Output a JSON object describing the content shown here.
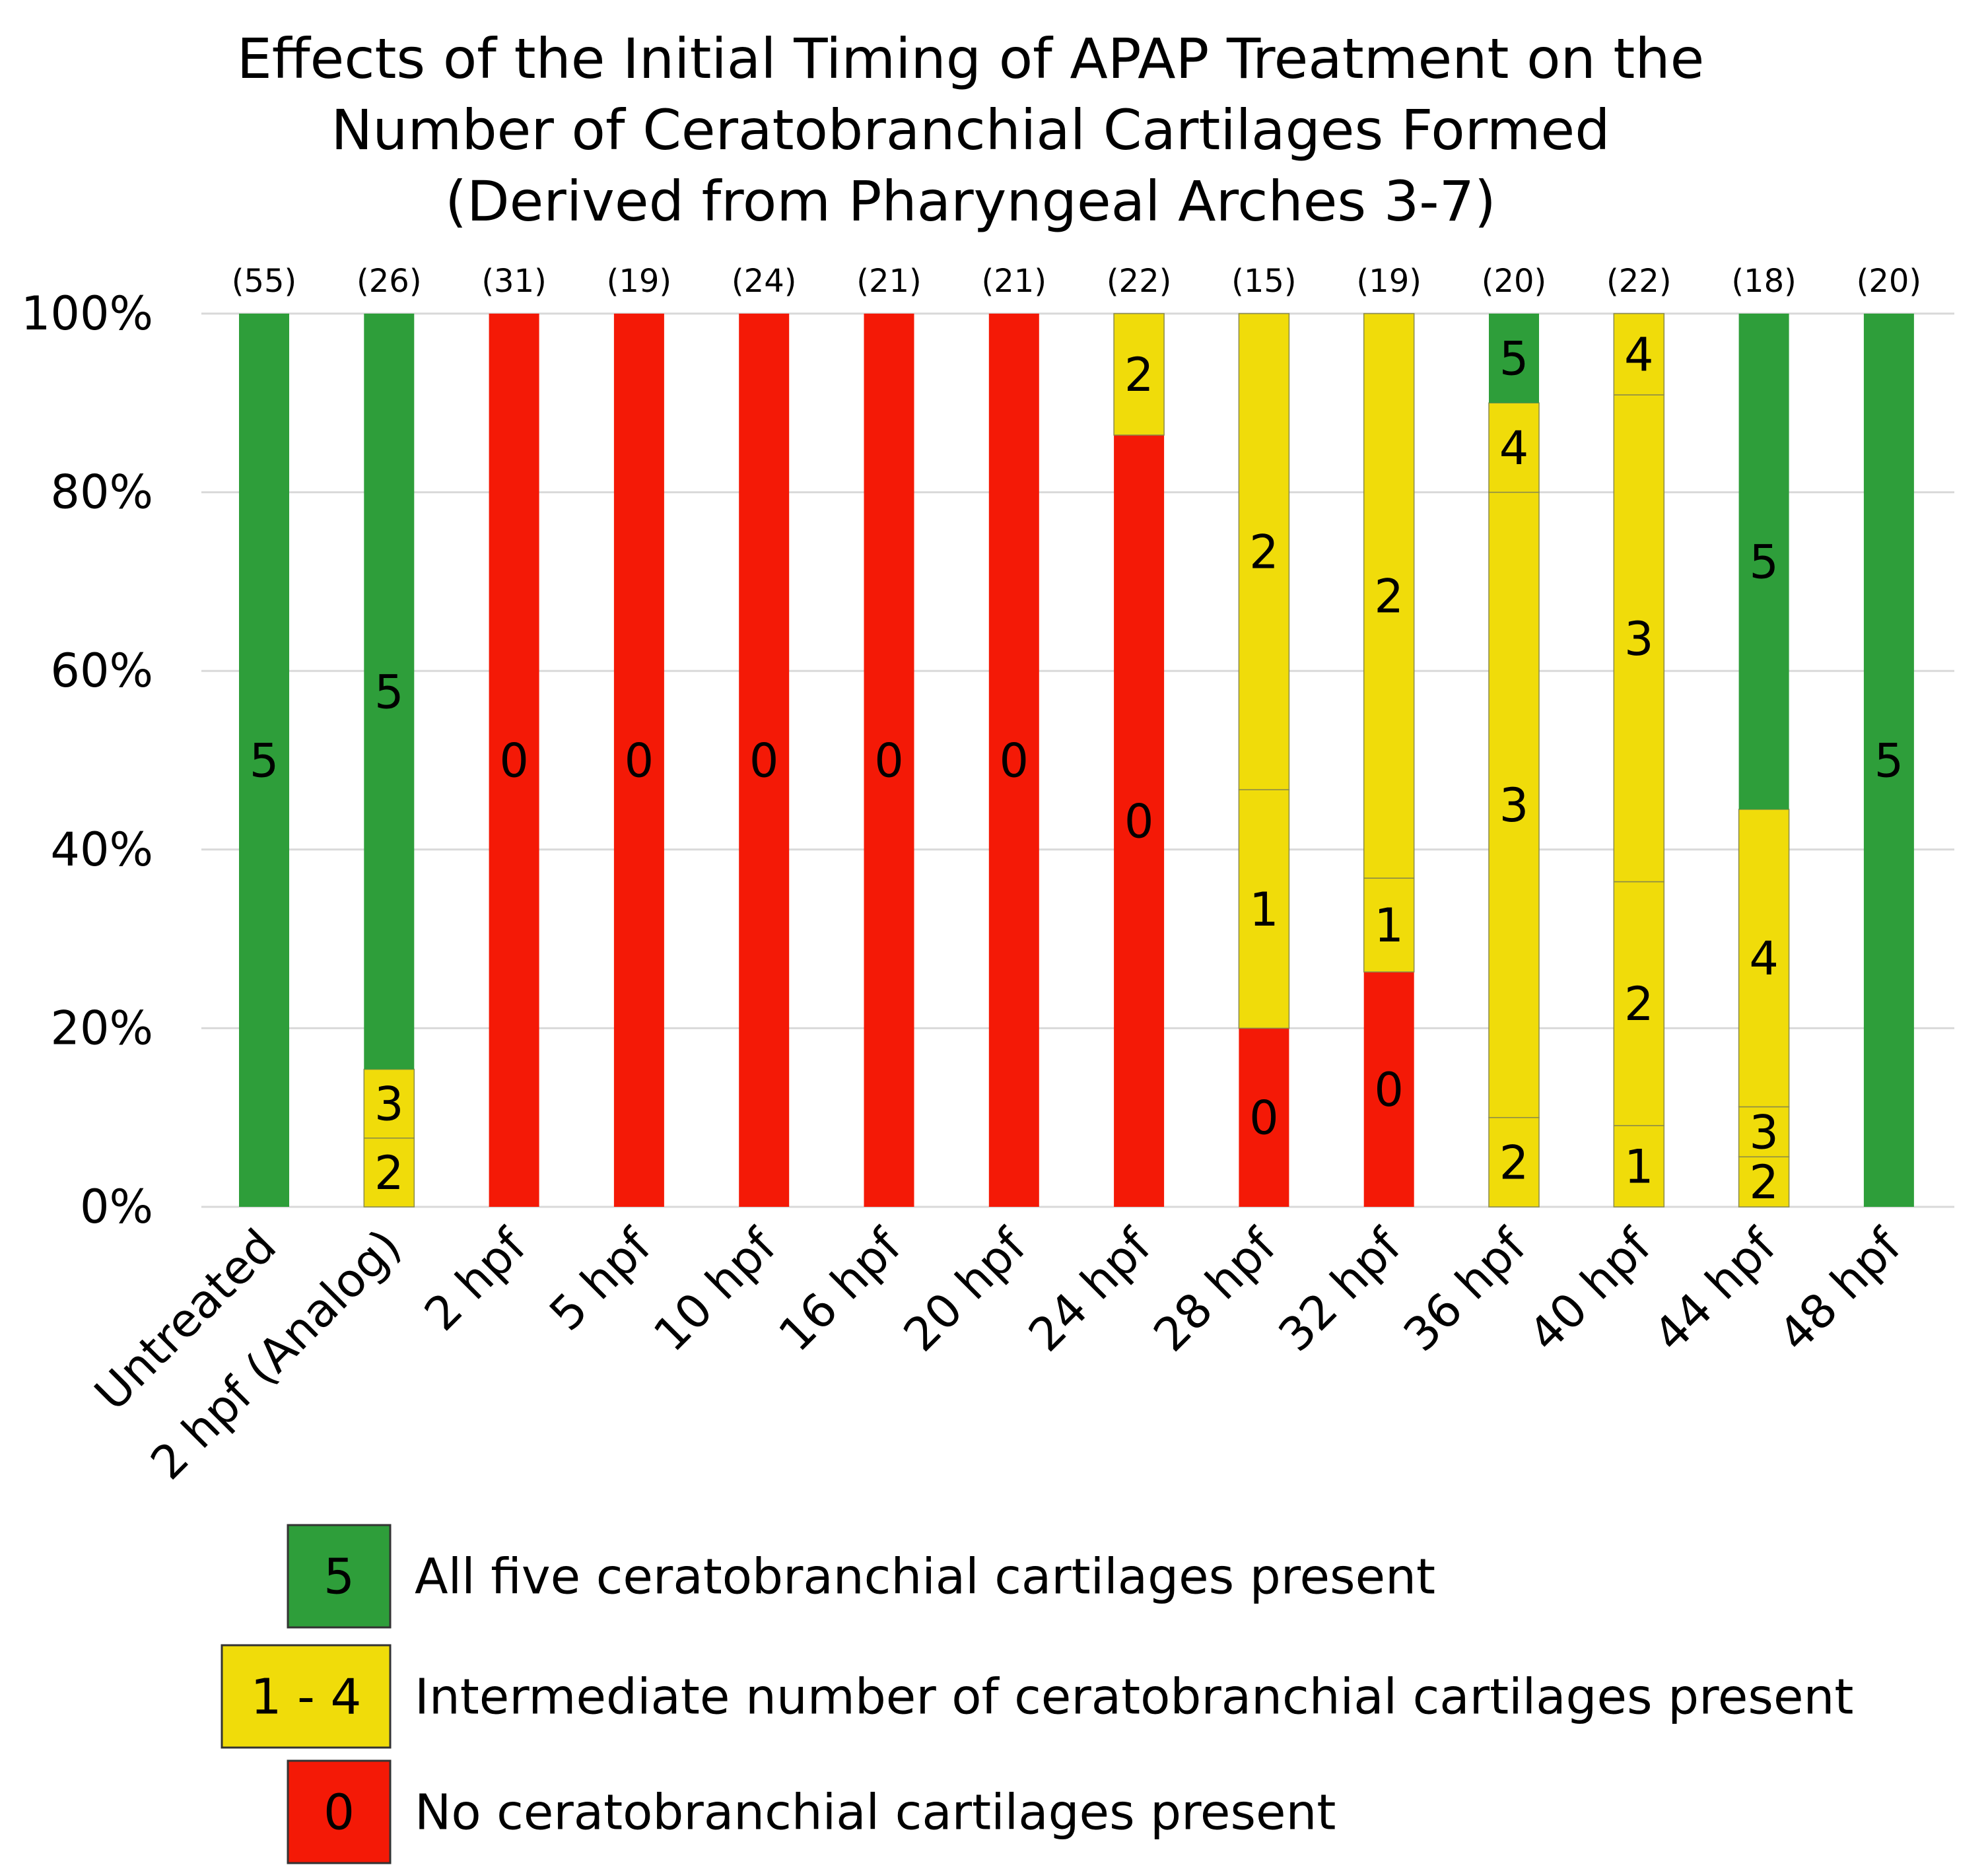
{
  "chart_data": {
    "type": "bar",
    "stacked": true,
    "title": [
      "Effects of the Initial Timing of APAP Treatment on the",
      "Number of Ceratobranchial Cartilages Formed",
      "(Derived from Pharyngeal Arches 3-7)"
    ],
    "xlabel": "",
    "ylabel": "",
    "ylim": [
      0,
      100
    ],
    "yticks": [
      "0%",
      "20%",
      "40%",
      "60%",
      "80%",
      "100%"
    ],
    "grid": true,
    "categories": [
      "Untreated",
      "2 hpf (Analog)",
      "2 hpf",
      "5 hpf",
      "10 hpf",
      "16 hpf",
      "20 hpf",
      "24 hpf",
      "28 hpf",
      "32 hpf",
      "36 hpf",
      "40 hpf",
      "44 hpf",
      "48 hpf"
    ],
    "n_labels": [
      "(55)",
      "(26)",
      "(31)",
      "(19)",
      "(24)",
      "(21)",
      "(21)",
      "(22)",
      "(15)",
      "(19)",
      "(20)",
      "(22)",
      "(18)",
      "(20)"
    ],
    "stacks": [
      [
        {
          "label": "5",
          "value": 100,
          "color": "green"
        }
      ],
      [
        {
          "label": "2",
          "value": 7.7,
          "color": "yellow"
        },
        {
          "label": "3",
          "value": 7.7,
          "color": "yellow"
        },
        {
          "label": "5",
          "value": 84.6,
          "color": "green"
        }
      ],
      [
        {
          "label": "0",
          "value": 100,
          "color": "red"
        }
      ],
      [
        {
          "label": "0",
          "value": 100,
          "color": "red"
        }
      ],
      [
        {
          "label": "0",
          "value": 100,
          "color": "red"
        }
      ],
      [
        {
          "label": "0",
          "value": 100,
          "color": "red"
        }
      ],
      [
        {
          "label": "0",
          "value": 100,
          "color": "red"
        }
      ],
      [
        {
          "label": "0",
          "value": 86.4,
          "color": "red"
        },
        {
          "label": "2",
          "value": 13.6,
          "color": "yellow"
        }
      ],
      [
        {
          "label": "0",
          "value": 20,
          "color": "red"
        },
        {
          "label": "1",
          "value": 26.7,
          "color": "yellow"
        },
        {
          "label": "2",
          "value": 53.3,
          "color": "yellow"
        }
      ],
      [
        {
          "label": "0",
          "value": 26.3,
          "color": "red"
        },
        {
          "label": "1",
          "value": 10.5,
          "color": "yellow"
        },
        {
          "label": "2",
          "value": 63.2,
          "color": "yellow"
        }
      ],
      [
        {
          "label": "2",
          "value": 10,
          "color": "yellow"
        },
        {
          "label": "3",
          "value": 70,
          "color": "yellow"
        },
        {
          "label": "4",
          "value": 10,
          "color": "yellow"
        },
        {
          "label": "5",
          "value": 10,
          "color": "green"
        }
      ],
      [
        {
          "label": "1",
          "value": 9.1,
          "color": "yellow"
        },
        {
          "label": "2",
          "value": 27.3,
          "color": "yellow"
        },
        {
          "label": "3",
          "value": 54.5,
          "color": "yellow"
        },
        {
          "label": "4",
          "value": 9.1,
          "color": "yellow"
        }
      ],
      [
        {
          "label": "2",
          "value": 5.6,
          "color": "yellow"
        },
        {
          "label": "3",
          "value": 5.6,
          "color": "yellow"
        },
        {
          "label": "4",
          "value": 33.3,
          "color": "yellow"
        },
        {
          "label": "5",
          "value": 55.5,
          "color": "green"
        }
      ],
      [
        {
          "label": "5",
          "value": 100,
          "color": "green"
        }
      ]
    ],
    "colors": {
      "green": "#2e9e3a",
      "yellow": "#f0dc0a",
      "red": "#f41906",
      "grid": "#d9d9d9",
      "edge": "#8a8a4a"
    },
    "legend": {
      "placement": "bottom",
      "entries": [
        {
          "box": "5",
          "text": "All five ceratobranchial cartilages present",
          "color": "green"
        },
        {
          "box": "1 - 4",
          "text": "Intermediate number of ceratobranchial cartilages present",
          "color": "yellow"
        },
        {
          "box": "0",
          "text": "No ceratobranchial cartilages present",
          "color": "red"
        }
      ]
    }
  }
}
